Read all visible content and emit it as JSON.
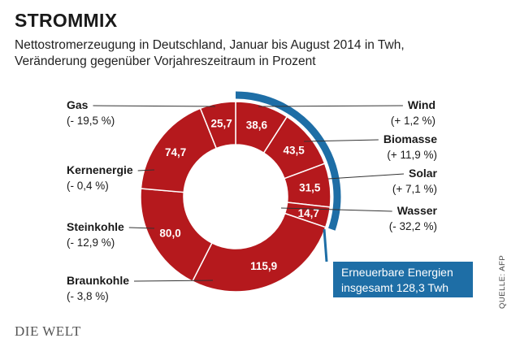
{
  "header": {
    "title": "STROMMIX",
    "subtitle_line1": "Nettostromerzeugung in Deutschland, Januar bis August 2014 in Twh,",
    "subtitle_line2": "Veränderung gegenüber Vorjahreszeitraum in Prozent"
  },
  "chart_data": {
    "type": "pie",
    "segments": [
      {
        "name": "Wind",
        "value": 38.6,
        "value_label": "38,6",
        "change": "(+ 1,2 %)"
      },
      {
        "name": "Biomasse",
        "value": 43.5,
        "value_label": "43,5",
        "change": "(+ 11,9 %)"
      },
      {
        "name": "Solar",
        "value": 31.5,
        "value_label": "31,5",
        "change": "(+ 7,1 %)"
      },
      {
        "name": "Wasser",
        "value": 14.7,
        "value_label": "14,7",
        "change": "(- 32,2 %)"
      },
      {
        "name": "Braunkohle",
        "value": 115.9,
        "value_label": "115,9",
        "change": "(- 3,8 %)"
      },
      {
        "name": "Steinkohle",
        "value": 80.0,
        "value_label": "80,0",
        "change": "(- 12,9 %)"
      },
      {
        "name": "Kernenergie",
        "value": 74.7,
        "value_label": "74,7",
        "change": "(- 0,4 %)"
      },
      {
        "name": "Gas",
        "value": 25.7,
        "value_label": "25,7",
        "change": "(- 19,5 %)"
      }
    ],
    "renewables_callout": {
      "line1": "Erneuerbare Energien",
      "line2": "insgesamt 128,3 Twh"
    }
  },
  "colors": {
    "segment": "#b5191d",
    "separator": "#ffffff",
    "renewables_arc": "#1e6ea6",
    "leader": "#333333"
  },
  "footer": {
    "source": "QUELLE: AFP",
    "logo": "DIE WELT"
  }
}
